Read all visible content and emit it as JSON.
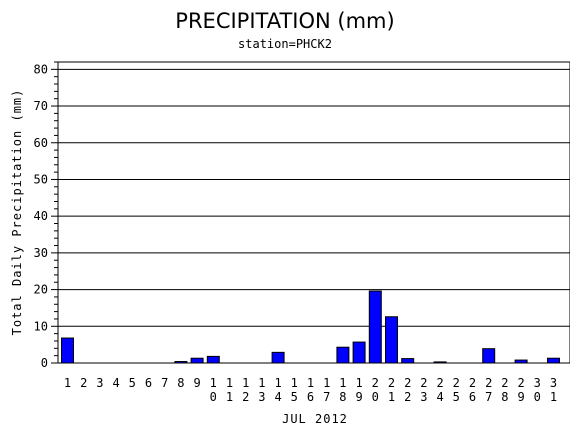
{
  "chart_data": {
    "type": "bar",
    "title": "PRECIPITATION (mm)",
    "subtitle": "station=PHCK2",
    "xlabel": "JUL 2012",
    "ylabel": "Total Daily Precipitation (mm)",
    "ylim": [
      0,
      82
    ],
    "yticks": [
      "0",
      "10",
      "20",
      "30",
      "40",
      "50",
      "60",
      "70",
      "80"
    ],
    "grid": true,
    "bar_color": "#0000ff",
    "categories": [
      "1",
      "2",
      "3",
      "4",
      "5",
      "6",
      "7",
      "8",
      "9",
      "10",
      "11",
      "12",
      "13",
      "14",
      "15",
      "16",
      "17",
      "18",
      "19",
      "20",
      "21",
      "22",
      "23",
      "24",
      "25",
      "26",
      "27",
      "28",
      "29",
      "30",
      "31"
    ],
    "values": [
      6.8,
      0,
      0,
      0,
      0,
      0,
      0,
      0.4,
      1.3,
      1.8,
      0,
      0,
      0,
      2.9,
      0,
      0,
      0,
      4.3,
      5.7,
      19.6,
      12.6,
      1.2,
      0,
      0.3,
      0,
      0,
      3.9,
      0,
      0.8,
      0,
      1.3
    ]
  }
}
